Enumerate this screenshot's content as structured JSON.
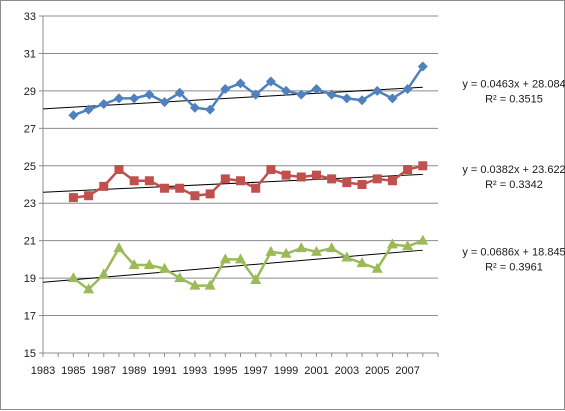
{
  "chart_data": {
    "type": "line",
    "title": "",
    "xlabel": "",
    "ylabel": "",
    "xlim": [
      1983,
      2009
    ],
    "ylim": [
      15,
      33
    ],
    "x_ticks": [
      "1983",
      "1985",
      "1987",
      "1989",
      "1991",
      "1993",
      "1995",
      "1997",
      "1999",
      "2001",
      "2003",
      "2005",
      "2007"
    ],
    "y_ticks": [
      "15",
      "17",
      "19",
      "21",
      "23",
      "25",
      "27",
      "29",
      "31",
      "33"
    ],
    "grid": "horizontal",
    "legend": "none",
    "x": [
      1985,
      1986,
      1987,
      1988,
      1989,
      1990,
      1991,
      1992,
      1993,
      1994,
      1995,
      1996,
      1997,
      1998,
      1999,
      2000,
      2001,
      2002,
      2003,
      2004,
      2005,
      2006,
      2007,
      2008
    ],
    "series": [
      {
        "color": "#4f81bd",
        "marker": "diamond",
        "values": [
          27.7,
          28.0,
          28.3,
          28.6,
          28.6,
          28.8,
          28.4,
          28.9,
          28.1,
          28.0,
          29.1,
          29.4,
          28.8,
          29.5,
          29.0,
          28.8,
          29.1,
          28.8,
          28.6,
          28.5,
          29.0,
          28.6,
          29.1,
          30.3
        ],
        "trendline": {
          "slope": 0.0463,
          "intercept": 28.084,
          "equation": "y = 0.0463x + 28.084",
          "r_squared": "R² = 0.3515"
        }
      },
      {
        "color": "#c0504d",
        "marker": "square",
        "values": [
          23.3,
          23.4,
          23.9,
          24.8,
          24.2,
          24.2,
          23.8,
          23.8,
          23.4,
          23.5,
          24.3,
          24.2,
          23.8,
          24.8,
          24.5,
          24.4,
          24.5,
          24.3,
          24.1,
          24.0,
          24.3,
          24.2,
          24.8,
          25.0
        ],
        "trendline": {
          "slope": 0.0382,
          "intercept": 23.622,
          "equation": "y = 0.0382x + 23.622",
          "r_squared": "R² = 0.3342"
        }
      },
      {
        "color": "#9bbb59",
        "marker": "triangle",
        "values": [
          19.0,
          18.4,
          19.2,
          20.6,
          19.7,
          19.7,
          19.5,
          19.0,
          18.6,
          18.6,
          20.0,
          20.0,
          18.9,
          20.4,
          20.3,
          20.6,
          20.4,
          20.6,
          20.1,
          19.8,
          19.5,
          20.8,
          20.7,
          21.0
        ],
        "trendline": {
          "slope": 0.0686,
          "intercept": 18.845,
          "equation": "y = 0.0686x + 18.845",
          "r_squared": "R² = 0.3961"
        }
      }
    ]
  }
}
